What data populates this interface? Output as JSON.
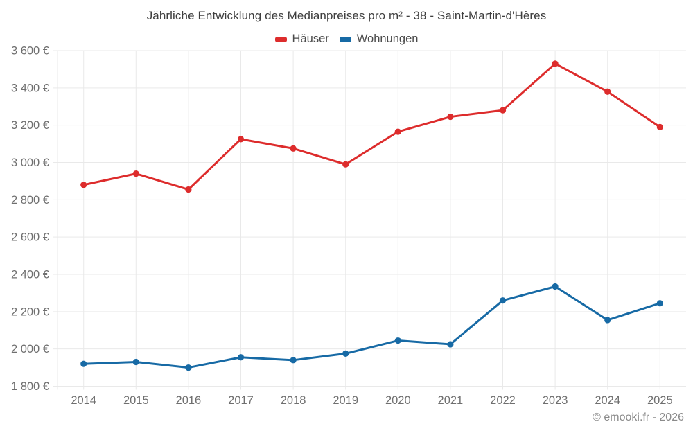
{
  "chart_data": {
    "type": "line",
    "title": "Jährliche Entwicklung des Medianpreises pro m² - 38 - Saint-Martin-d'Hères",
    "categories": [
      "2014",
      "2015",
      "2016",
      "2017",
      "2018",
      "2019",
      "2020",
      "2021",
      "2022",
      "2023",
      "2024",
      "2025"
    ],
    "series": [
      {
        "name": "Häuser",
        "color": "#dd2c2c",
        "values": [
          2880,
          2940,
          2855,
          3125,
          3075,
          2990,
          3165,
          3245,
          3280,
          3530,
          3380,
          3190
        ]
      },
      {
        "name": "Wohnungen",
        "color": "#176aa5",
        "values": [
          1920,
          1930,
          1900,
          1955,
          1940,
          1975,
          2045,
          2025,
          2260,
          2335,
          2155,
          2245
        ]
      }
    ],
    "xlabel": "",
    "ylabel": "",
    "ylim": [
      1800,
      3600
    ],
    "y_tick_step": 200,
    "y_tick_values": [
      1800,
      2000,
      2200,
      2400,
      2600,
      2800,
      3000,
      3200,
      3400,
      3600
    ],
    "y_tick_labels": [
      "1 800 €",
      "2 000 €",
      "2 200 €",
      "2 400 €",
      "2 600 €",
      "2 800 €",
      "3 000 €",
      "3 200 €",
      "3 400 €",
      "3 600 €"
    ],
    "grid": true,
    "legend_position": "top"
  },
  "footer": {
    "credit": "© emooki.fr - 2026"
  },
  "colors": {
    "hauser": "#dd2c2c",
    "wohnungen": "#176aa5",
    "gridline": "#e9e9e9",
    "axis_text": "#6f6f6f",
    "title_text": "#3e3e3e",
    "legend_text": "#4a4a4a",
    "credit_text": "#8a8a8a",
    "background": "#ffffff"
  }
}
